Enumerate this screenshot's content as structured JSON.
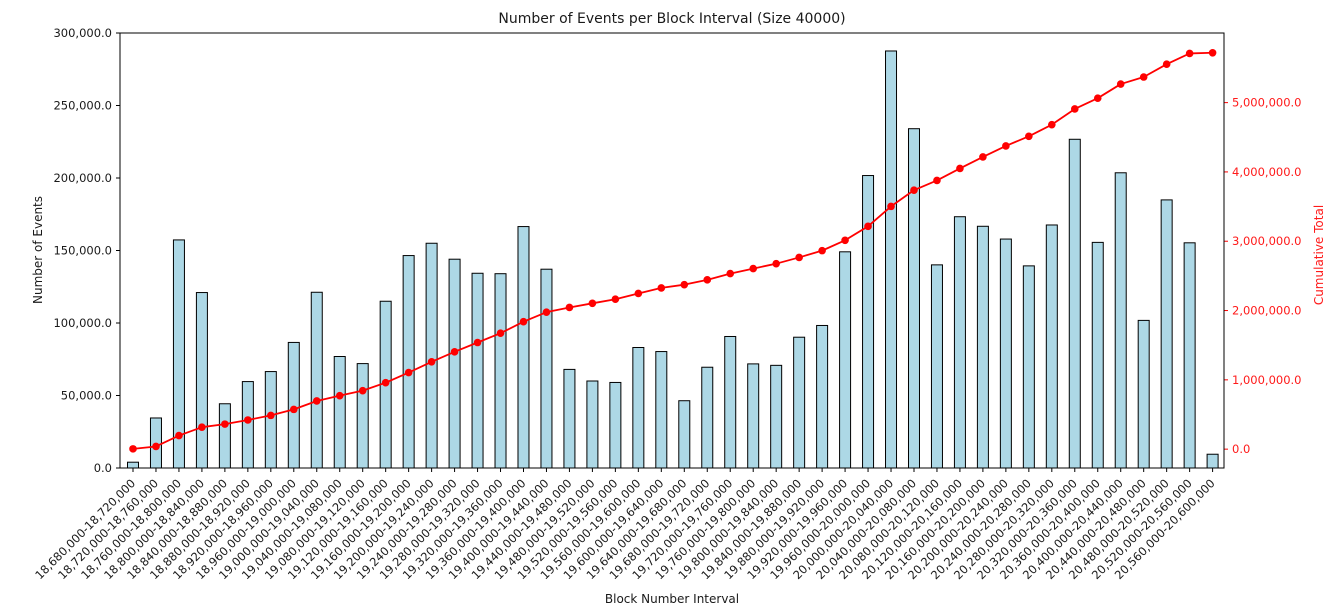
{
  "chart_data": {
    "type": "bar",
    "title": "Number of Events per Block Interval (Size 40000)",
    "xlabel": "Block Number Interval",
    "ylabel_left": "Number of Events",
    "ylabel_right": "Cumulative Total",
    "grid": false,
    "legend": null,
    "categories": [
      "18,680,000-18,720,000",
      "18,720,000-18,760,000",
      "18,760,000-18,800,000",
      "18,800,000-18,840,000",
      "18,840,000-18,880,000",
      "18,880,000-18,920,000",
      "18,920,000-18,960,000",
      "18,960,000-19,000,000",
      "19,000,000-19,040,000",
      "19,040,000-19,080,000",
      "19,080,000-19,120,000",
      "19,120,000-19,160,000",
      "19,160,000-19,200,000",
      "19,200,000-19,240,000",
      "19,240,000-19,280,000",
      "19,280,000-19,320,000",
      "19,320,000-19,360,000",
      "19,360,000-19,400,000",
      "19,400,000-19,440,000",
      "19,440,000-19,480,000",
      "19,480,000-19,520,000",
      "19,520,000-19,560,000",
      "19,560,000-19,600,000",
      "19,600,000-19,640,000",
      "19,640,000-19,680,000",
      "19,680,000-19,720,000",
      "19,720,000-19,760,000",
      "19,760,000-19,800,000",
      "19,800,000-19,840,000",
      "19,840,000-19,880,000",
      "19,880,000-19,920,000",
      "19,920,000-19,960,000",
      "19,960,000-20,000,000",
      "20,000,000-20,040,000",
      "20,040,000-20,080,000",
      "20,080,000-20,120,000",
      "20,120,000-20,160,000",
      "20,160,000-20,200,000",
      "20,200,000-20,240,000",
      "20,240,000-20,280,000",
      "20,280,000-20,320,000",
      "20,320,000-20,360,000",
      "20,360,000-20,400,000",
      "20,400,000-20,440,000",
      "20,440,000-20,480,000",
      "20,480,000-20,520,000",
      "20,520,000-20,560,000",
      "20,560,000-20,600,000"
    ],
    "series": [
      {
        "name": "Number of Events",
        "type": "bar",
        "axis": "left",
        "color": "#add8e6",
        "edge_color": "#000000",
        "values": [
          4000,
          34500,
          157300,
          121000,
          44300,
          59600,
          66500,
          86600,
          121200,
          76900,
          72000,
          115000,
          146500,
          155000,
          144000,
          134300,
          134000,
          166500,
          137100,
          68000,
          60000,
          59000,
          83100,
          80300,
          46400,
          69500,
          90700,
          71800,
          70800,
          90200,
          98300,
          149100,
          201700,
          287600,
          234000,
          140100,
          173300,
          166700,
          157900,
          139400,
          167600,
          226700,
          155600,
          203600,
          101800,
          184900,
          155300,
          9500
        ]
      },
      {
        "name": "Cumulative Total",
        "type": "line",
        "axis": "right",
        "color": "#ff0000",
        "marker": "o",
        "values": [
          4000,
          38500,
          195800,
          316800,
          361100,
          420700,
          487200,
          573800,
          695000,
          771900,
          843900,
          958900,
          1105400,
          1260400,
          1404400,
          1538700,
          1672700,
          1839200,
          1976300,
          2044300,
          2104300,
          2163300,
          2246400,
          2326700,
          2373100,
          2442600,
          2533300,
          2605100,
          2675900,
          2766100,
          2864400,
          3013500,
          3215200,
          3502800,
          3736800,
          3876900,
          4050200,
          4216900,
          4374800,
          4514200,
          4681800,
          4908500,
          5064100,
          5267700,
          5369500,
          5554400,
          5709700,
          5719200
        ]
      }
    ],
    "axes": {
      "left": {
        "lim": [
          0,
          300000
        ],
        "tick_values": [
          0,
          50000,
          100000,
          150000,
          200000,
          250000,
          300000
        ],
        "tick_labels": [
          "0.0",
          "50,000.0",
          "100,000.0",
          "150,000.0",
          "200,000.0",
          "250,000.0",
          "300,000.0"
        ],
        "color": "#000000"
      },
      "right": {
        "lim": [
          -272000,
          6004500
        ],
        "tick_values": [
          0,
          1000000,
          2000000,
          3000000,
          4000000,
          5000000
        ],
        "tick_labels": [
          "0.0",
          "1,000,000.0",
          "2,000,000.0",
          "3,000,000.0",
          "4,000,000.0",
          "5,000,000.0"
        ],
        "color": "#ff0000"
      },
      "x": {
        "tick_rotation": 45
      }
    }
  }
}
